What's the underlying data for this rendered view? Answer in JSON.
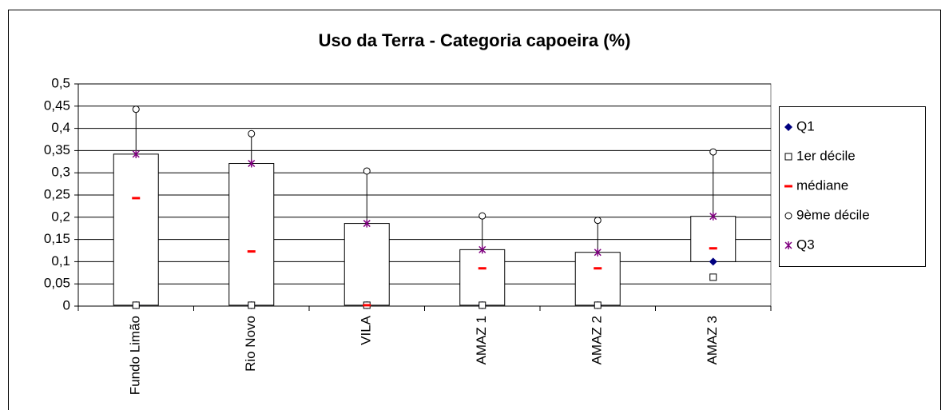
{
  "chart_data": {
    "type": "box",
    "title": "Uso da Terra - Categoria capoeira (%)",
    "categories": [
      "Fundo Limão",
      "Rio Novo",
      "VILA",
      "AMAZ 1",
      "AMAZ 2",
      "AMAZ 3"
    ],
    "series": [
      {
        "name": "Q1",
        "color": "#000080",
        "marker": "diamond",
        "values": [
          0.002,
          0.002,
          0.002,
          0.002,
          0.002,
          0.1
        ]
      },
      {
        "name": "1er décile",
        "color": "#000000",
        "marker": "square",
        "values": [
          0.002,
          0.002,
          0.002,
          0.002,
          0.002,
          0.065
        ]
      },
      {
        "name": "médiane",
        "color": "#ff0000",
        "marker": "dash",
        "values": [
          0.243,
          0.123,
          0.002,
          0.085,
          0.085,
          0.13
        ]
      },
      {
        "name": "9ème décile",
        "color": "#000000",
        "marker": "circle",
        "values": [
          0.443,
          0.388,
          0.304,
          0.203,
          0.193,
          0.347
        ]
      },
      {
        "name": "Q3",
        "color": "#800080",
        "marker": "star",
        "values": [
          0.342,
          0.321,
          0.186,
          0.127,
          0.121,
          0.202
        ]
      }
    ],
    "ylim": [
      0,
      0.5
    ],
    "yticks": [
      {
        "value": 0,
        "label": "0"
      },
      {
        "value": 0.05,
        "label": "0,05"
      },
      {
        "value": 0.1,
        "label": "0,1"
      },
      {
        "value": 0.15,
        "label": "0,15"
      },
      {
        "value": 0.2,
        "label": "0,2"
      },
      {
        "value": 0.25,
        "label": "0,25"
      },
      {
        "value": 0.3,
        "label": "0,3"
      },
      {
        "value": 0.35,
        "label": "0,35"
      },
      {
        "value": 0.4,
        "label": "0,4"
      },
      {
        "value": 0.45,
        "label": "0,45"
      },
      {
        "value": 0.5,
        "label": "0,5"
      }
    ],
    "grid": true,
    "legend": "right"
  }
}
